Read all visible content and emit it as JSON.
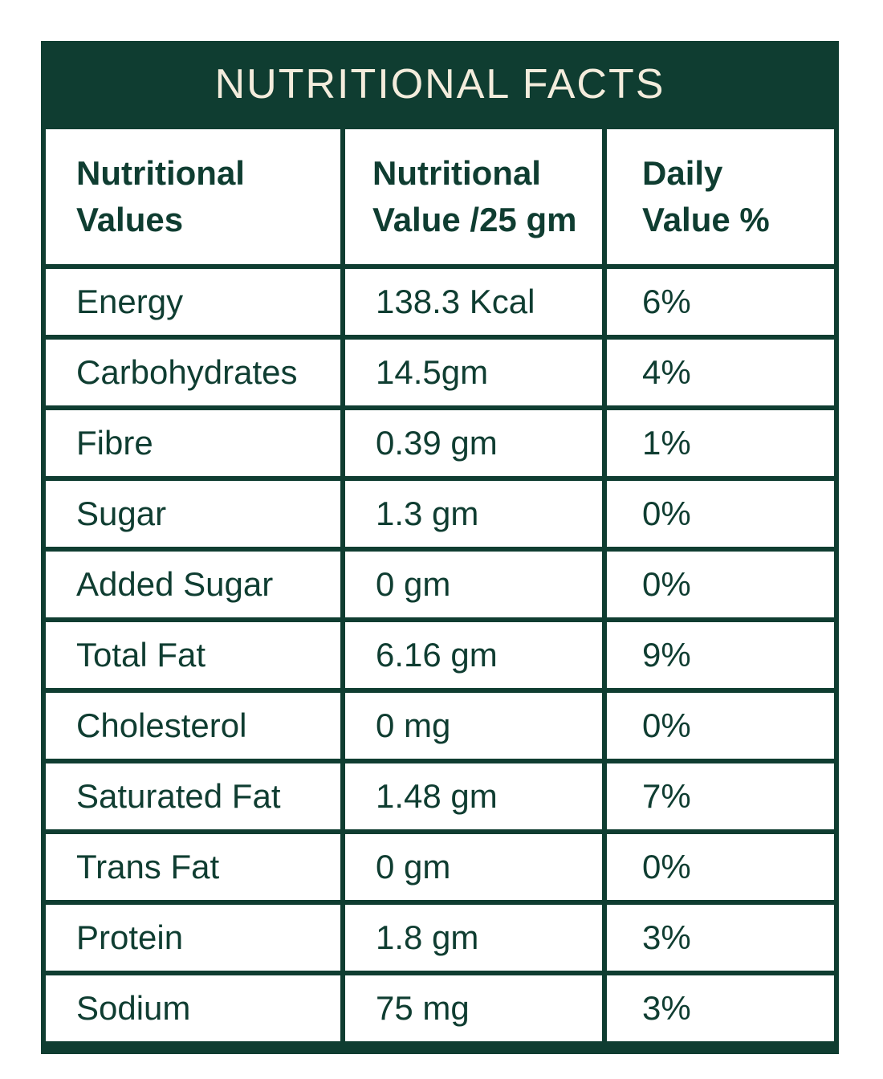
{
  "title": "NUTRITIONAL FACTS",
  "colors": {
    "dark_green": "#0f3d31",
    "cream": "#f3ecdc",
    "cell_background": "#ffffff"
  },
  "table": {
    "headers": [
      "Nutritional\nValues",
      "Nutritional\nValue /25 gm",
      "Daily\nValue %"
    ],
    "rows": [
      [
        "Energy",
        "138.3 Kcal",
        "6%"
      ],
      [
        "Carbohydrates",
        "14.5gm",
        "4%"
      ],
      [
        "Fibre",
        "0.39 gm",
        "1%"
      ],
      [
        "Sugar",
        "1.3 gm",
        "0%"
      ],
      [
        "Added Sugar",
        "0 gm",
        "0%"
      ],
      [
        "Total Fat",
        "6.16 gm",
        "9%"
      ],
      [
        "Cholesterol",
        "0 mg",
        "0%"
      ],
      [
        "Saturated Fat",
        "1.48 gm",
        "7%"
      ],
      [
        "Trans Fat",
        "0 gm",
        "0%"
      ],
      [
        "Protein",
        "1.8 gm",
        "3%"
      ],
      [
        "Sodium",
        "75 mg",
        "3%"
      ]
    ]
  }
}
